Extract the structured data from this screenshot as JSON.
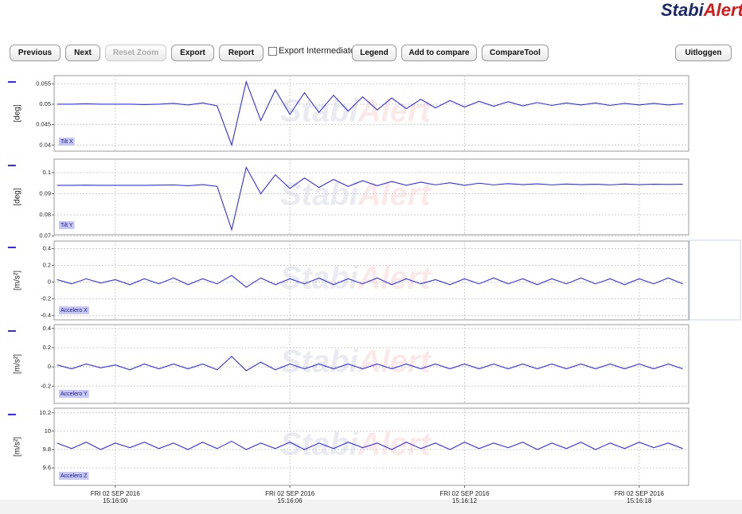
{
  "logo": [
    "Stabi",
    "Alert"
  ],
  "toolbar": {
    "buttons": [
      "Previous",
      "Next",
      "Reset Zoom",
      "Export",
      "Report"
    ],
    "checkbox": "Export Intermediate",
    "buttons2": [
      "Legend",
      "Add to compare",
      "CompareTool"
    ],
    "logout": "Uitloggen"
  },
  "chart_data": [
    {
      "type": "line",
      "ylabel": "[deg]",
      "grid": true,
      "x": [
        "15:15:58.0",
        "15:15:58.5",
        "15:15:59.0",
        "15:15:59.5",
        "15:16:00.0",
        "15:16:00.5",
        "15:16:01.0",
        "15:16:01.5",
        "15:16:02.0",
        "15:16:02.5",
        "15:16:03.0",
        "15:16:03.5",
        "15:16:04.0",
        "15:16:04.5",
        "15:16:05.0",
        "15:16:05.5",
        "15:16:06.0",
        "15:16:06.5",
        "15:16:07.0",
        "15:16:07.5",
        "15:16:08.0",
        "15:16:08.5",
        "15:16:09.0",
        "15:16:09.5",
        "15:16:10.0",
        "15:16:10.5",
        "15:16:11.0",
        "15:16:11.5",
        "15:16:12.0",
        "15:16:12.5",
        "15:16:13.0",
        "15:16:13.5",
        "15:16:14.0",
        "15:16:14.5",
        "15:16:15.0",
        "15:16:15.5",
        "15:16:16.0",
        "15:16:16.5",
        "15:16:17.0",
        "15:16:17.5",
        "15:16:18.0",
        "15:16:18.5",
        "15:16:19.0",
        "15:16:19.5"
      ],
      "xlim": [
        "15:15:57.9",
        "15:16:19.7"
      ],
      "ylim": [
        0.0385,
        0.057
      ],
      "yticks": [
        0.04,
        0.045,
        0.05,
        0.055
      ],
      "series": [
        {
          "name": "Tilt X",
          "color": "#2f2ff0",
          "values": [
            0.05,
            0.05,
            0.0501,
            0.05,
            0.05,
            0.05,
            0.0499,
            0.05,
            0.0502,
            0.0498,
            0.0503,
            0.0496,
            0.04,
            0.0555,
            0.046,
            0.0535,
            0.0475,
            0.0528,
            0.048,
            0.0522,
            0.0483,
            0.0518,
            0.0486,
            0.0515,
            0.0489,
            0.0512,
            0.0491,
            0.0509,
            0.0493,
            0.0507,
            0.0495,
            0.0506,
            0.0496,
            0.0504,
            0.0497,
            0.0503,
            0.0498,
            0.0503,
            0.0497,
            0.0502,
            0.0498,
            0.0502,
            0.0498,
            0.0501
          ]
        }
      ]
    },
    {
      "type": "line",
      "ylabel": "[deg]",
      "grid": true,
      "x": [
        "15:15:58.0",
        "15:15:58.5",
        "15:15:59.0",
        "15:15:59.5",
        "15:16:00.0",
        "15:16:00.5",
        "15:16:01.0",
        "15:16:01.5",
        "15:16:02.0",
        "15:16:02.5",
        "15:16:03.0",
        "15:16:03.5",
        "15:16:04.0",
        "15:16:04.5",
        "15:16:05.0",
        "15:16:05.5",
        "15:16:06.0",
        "15:16:06.5",
        "15:16:07.0",
        "15:16:07.5",
        "15:16:08.0",
        "15:16:08.5",
        "15:16:09.0",
        "15:16:09.5",
        "15:16:10.0",
        "15:16:10.5",
        "15:16:11.0",
        "15:16:11.5",
        "15:16:12.0",
        "15:16:12.5",
        "15:16:13.0",
        "15:16:13.5",
        "15:16:14.0",
        "15:16:14.5",
        "15:16:15.0",
        "15:16:15.5",
        "15:16:16.0",
        "15:16:16.5",
        "15:16:17.0",
        "15:16:17.5",
        "15:16:18.0",
        "15:16:18.5",
        "15:16:19.0",
        "15:16:19.5"
      ],
      "xlim": [
        "15:15:57.9",
        "15:16:19.7"
      ],
      "ylim": [
        0.0706,
        0.1064
      ],
      "yticks": [
        0.07,
        0.08,
        0.09,
        0.1
      ],
      "series": [
        {
          "name": "Tilt Y",
          "color": "#2f2ff0",
          "values": [
            0.094,
            0.094,
            0.0941,
            0.094,
            0.094,
            0.094,
            0.094,
            0.0941,
            0.0942,
            0.0938,
            0.0943,
            0.0935,
            0.073,
            0.1025,
            0.09,
            0.099,
            0.0925,
            0.0975,
            0.093,
            0.0968,
            0.0935,
            0.0962,
            0.0938,
            0.0958,
            0.094,
            0.0955,
            0.0942,
            0.0952,
            0.094,
            0.095,
            0.0942,
            0.0948,
            0.0943,
            0.0947,
            0.0942,
            0.0946,
            0.0943,
            0.0945,
            0.0942,
            0.0946,
            0.0943,
            0.0945,
            0.0944,
            0.0945
          ]
        }
      ]
    },
    {
      "type": "line",
      "ylabel": "[m/s²]",
      "grid": true,
      "x": [
        "15:15:58.0",
        "15:15:58.5",
        "15:15:59.0",
        "15:15:59.5",
        "15:16:00.0",
        "15:16:00.5",
        "15:16:01.0",
        "15:16:01.5",
        "15:16:02.0",
        "15:16:02.5",
        "15:16:03.0",
        "15:16:03.5",
        "15:16:04.0",
        "15:16:04.5",
        "15:16:05.0",
        "15:16:05.5",
        "15:16:06.0",
        "15:16:06.5",
        "15:16:07.0",
        "15:16:07.5",
        "15:16:08.0",
        "15:16:08.5",
        "15:16:09.0",
        "15:16:09.5",
        "15:16:10.0",
        "15:16:10.5",
        "15:16:11.0",
        "15:16:11.5",
        "15:16:12.0",
        "15:16:12.5",
        "15:16:13.0",
        "15:16:13.5",
        "15:16:14.0",
        "15:16:14.5",
        "15:16:15.0",
        "15:16:15.5",
        "15:16:16.0",
        "15:16:16.5",
        "15:16:17.0",
        "15:16:17.5",
        "15:16:18.0",
        "15:16:18.5",
        "15:16:19.0",
        "15:16:19.5"
      ],
      "xlim": [
        "15:15:57.9",
        "15:16:19.7"
      ],
      "ylim": [
        -0.45,
        0.49
      ],
      "yticks": [
        -0.4,
        -0.2,
        0,
        0.2,
        0.4
      ],
      "series": [
        {
          "name": "Accelero X",
          "color": "#2f2ff0",
          "values": [
            0.03,
            -0.02,
            0.04,
            -0.01,
            0.03,
            -0.03,
            0.04,
            -0.02,
            0.05,
            -0.03,
            0.04,
            -0.02,
            0.08,
            -0.06,
            0.05,
            -0.03,
            0.04,
            -0.02,
            0.05,
            -0.03,
            0.04,
            -0.02,
            0.05,
            -0.03,
            0.04,
            -0.02,
            0.03,
            -0.03,
            0.04,
            -0.02,
            0.05,
            -0.02,
            0.04,
            -0.03,
            0.04,
            -0.02,
            0.05,
            -0.02,
            0.04,
            -0.03,
            0.04,
            -0.02,
            0.05,
            -0.02
          ]
        }
      ]
    },
    {
      "type": "line",
      "ylabel": "[m/s²]",
      "grid": true,
      "x": [
        "15:15:58.0",
        "15:15:58.5",
        "15:15:59.0",
        "15:15:59.5",
        "15:16:00.0",
        "15:16:00.5",
        "15:16:01.0",
        "15:16:01.5",
        "15:16:02.0",
        "15:16:02.5",
        "15:16:03.0",
        "15:16:03.5",
        "15:16:04.0",
        "15:16:04.5",
        "15:16:05.0",
        "15:16:05.5",
        "15:16:06.0",
        "15:16:06.5",
        "15:16:07.0",
        "15:16:07.5",
        "15:16:08.0",
        "15:16:08.5",
        "15:16:09.0",
        "15:16:09.5",
        "15:16:10.0",
        "15:16:10.5",
        "15:16:11.0",
        "15:16:11.5",
        "15:16:12.0",
        "15:16:12.5",
        "15:16:13.0",
        "15:16:13.5",
        "15:16:14.0",
        "15:16:14.5",
        "15:16:15.0",
        "15:16:15.5",
        "15:16:16.0",
        "15:16:16.5",
        "15:16:17.0",
        "15:16:17.5",
        "15:16:18.0",
        "15:16:18.5",
        "15:16:19.0",
        "15:16:19.5"
      ],
      "xlim": [
        "15:15:57.9",
        "15:16:19.7"
      ],
      "ylim": [
        -0.38,
        0.44
      ],
      "yticks": [
        -0.2,
        0,
        0.2,
        0.4
      ],
      "series": [
        {
          "name": "Accelero Y",
          "color": "#2f2ff0",
          "values": [
            0.02,
            -0.02,
            0.03,
            -0.01,
            0.02,
            -0.03,
            0.03,
            -0.02,
            0.03,
            -0.02,
            0.03,
            -0.03,
            0.11,
            -0.04,
            0.05,
            -0.03,
            0.03,
            -0.02,
            0.03,
            -0.02,
            0.03,
            -0.02,
            0.03,
            -0.02,
            0.03,
            -0.02,
            0.03,
            -0.02,
            0.03,
            -0.02,
            0.03,
            -0.02,
            0.03,
            -0.02,
            0.03,
            -0.02,
            0.03,
            -0.02,
            0.03,
            -0.02,
            0.03,
            -0.02,
            0.03,
            -0.02
          ]
        }
      ]
    },
    {
      "type": "line",
      "ylabel": "[m/s²]",
      "grid": true,
      "x": [
        "15:15:58.0",
        "15:15:58.5",
        "15:15:59.0",
        "15:15:59.5",
        "15:16:00.0",
        "15:16:00.5",
        "15:16:01.0",
        "15:16:01.5",
        "15:16:02.0",
        "15:16:02.5",
        "15:16:03.0",
        "15:16:03.5",
        "15:16:04.0",
        "15:16:04.5",
        "15:16:05.0",
        "15:16:05.5",
        "15:16:06.0",
        "15:16:06.5",
        "15:16:07.0",
        "15:16:07.5",
        "15:16:08.0",
        "15:16:08.5",
        "15:16:09.0",
        "15:16:09.5",
        "15:16:10.0",
        "15:16:10.5",
        "15:16:11.0",
        "15:16:11.5",
        "15:16:12.0",
        "15:16:12.5",
        "15:16:13.0",
        "15:16:13.5",
        "15:16:14.0",
        "15:16:14.5",
        "15:16:15.0",
        "15:16:15.5",
        "15:16:16.0",
        "15:16:16.5",
        "15:16:17.0",
        "15:16:17.5",
        "15:16:18.0",
        "15:16:18.5",
        "15:16:19.0",
        "15:16:19.5"
      ],
      "xlim": [
        "15:15:57.9",
        "15:16:19.7"
      ],
      "ylim": [
        9.41,
        10.25
      ],
      "yticks": [
        9.6,
        9.8,
        10,
        10.2
      ],
      "xticks": [
        {
          "value": "15:16:00",
          "label": "FRI 02 SEP 2016 15:16:00"
        },
        {
          "value": "15:16:06",
          "label": "FRI 02 SEP 2016 15:16:06"
        },
        {
          "value": "15:16:12",
          "label": "FRI 02 SEP 2016 15:16:12"
        },
        {
          "value": "15:16:18",
          "label": "FRI 02 SEP 2016 15:16:18"
        }
      ],
      "series": [
        {
          "name": "Accelero Z",
          "color": "#2f2ff0",
          "values": [
            9.87,
            9.81,
            9.88,
            9.8,
            9.87,
            9.82,
            9.88,
            9.81,
            9.87,
            9.8,
            9.88,
            9.81,
            9.89,
            9.8,
            9.87,
            9.81,
            9.88,
            9.8,
            9.87,
            9.81,
            9.88,
            9.82,
            9.87,
            9.8,
            9.88,
            9.81,
            9.87,
            9.8,
            9.88,
            9.81,
            9.87,
            9.82,
            9.88,
            9.8,
            9.87,
            9.81,
            9.88,
            9.8,
            9.87,
            9.81,
            9.88,
            9.82,
            9.87,
            9.81
          ]
        }
      ]
    }
  ]
}
